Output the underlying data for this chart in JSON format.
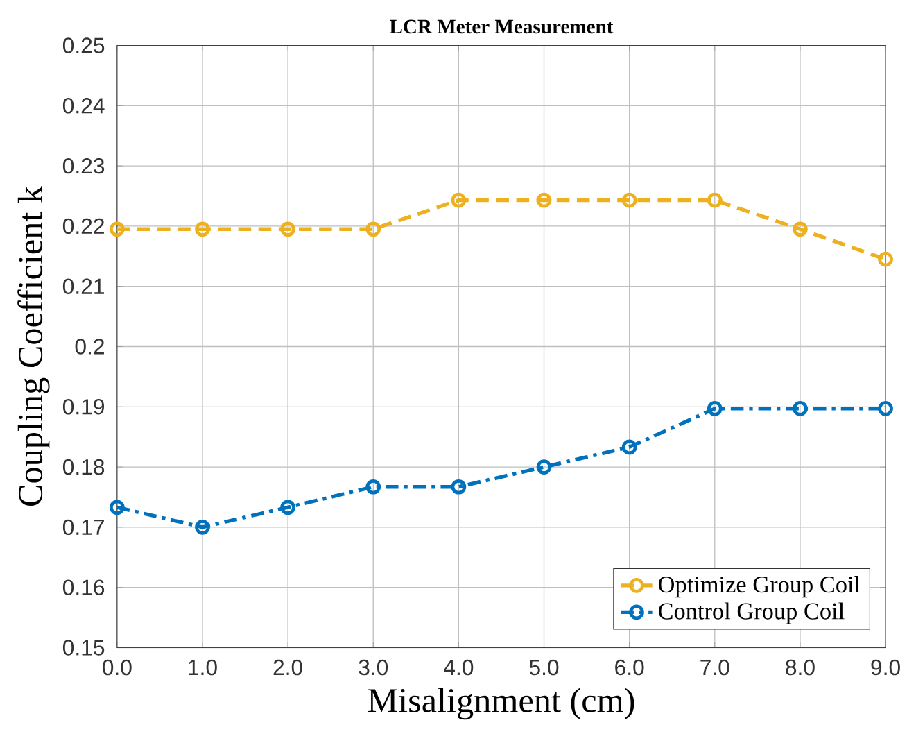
{
  "chart_data": {
    "type": "line",
    "title": "LCR Meter Measurement",
    "xlabel": "Misalignment (cm)",
    "ylabel": "Coupling Coefficient k",
    "x": [
      0,
      1,
      2,
      3,
      4,
      5,
      6,
      7,
      8,
      9
    ],
    "series": [
      {
        "name": "Optimize Group Coil",
        "color": "#edb120",
        "line_style": "dashed",
        "values": [
          0.2195,
          0.2195,
          0.2195,
          0.2195,
          0.2243,
          0.2243,
          0.2243,
          0.2243,
          0.2195,
          0.2145
        ]
      },
      {
        "name": "Control Group Coil",
        "color": "#0072bd",
        "line_style": "dashdot",
        "values": [
          0.1733,
          0.17,
          0.1733,
          0.1767,
          0.1767,
          0.18,
          0.1833,
          0.1897,
          0.1897,
          0.1897
        ]
      }
    ],
    "xlim": [
      0,
      9
    ],
    "ylim": [
      0.15,
      0.25
    ],
    "xticks": [
      {
        "value": 0,
        "label": "0.0"
      },
      {
        "value": 1,
        "label": "1.0"
      },
      {
        "value": 2,
        "label": "2.0"
      },
      {
        "value": 3,
        "label": "3.0"
      },
      {
        "value": 4,
        "label": "4.0"
      },
      {
        "value": 5,
        "label": "5.0"
      },
      {
        "value": 6,
        "label": "6.0"
      },
      {
        "value": 7,
        "label": "7.0"
      },
      {
        "value": 8,
        "label": "8.0"
      },
      {
        "value": 9,
        "label": "9.0"
      }
    ],
    "yticks": [
      0.15,
      0.16,
      0.17,
      0.18,
      0.19,
      0.2,
      0.21,
      0.22,
      0.23,
      0.24,
      0.25
    ],
    "grid": true,
    "legend": "bottom right",
    "marker": "circle"
  }
}
